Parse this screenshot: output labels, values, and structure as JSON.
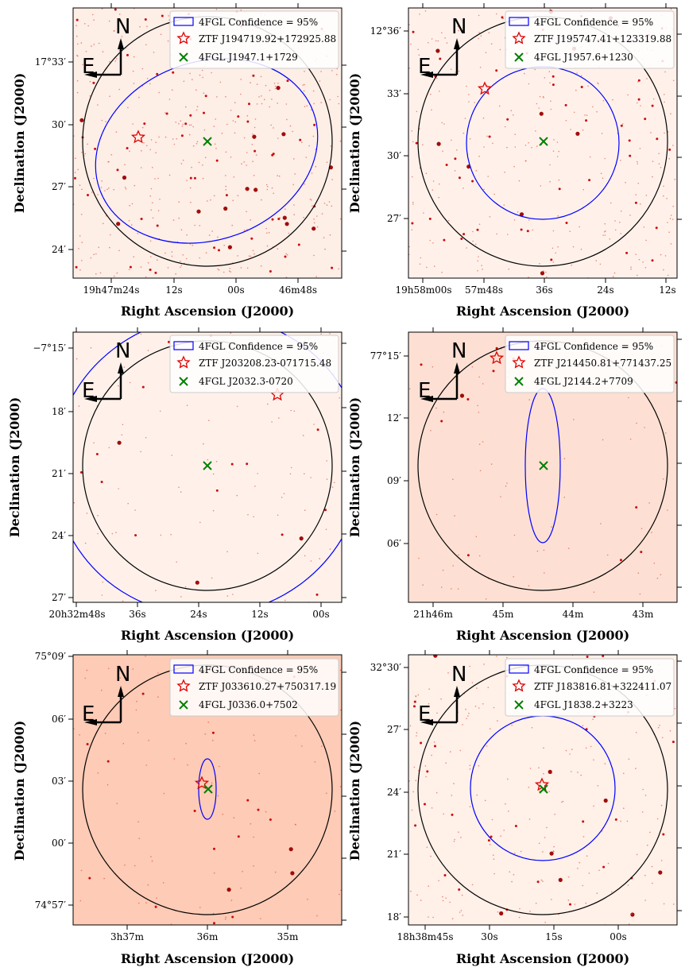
{
  "figure": {
    "panels": [
      {
        "id": "a",
        "bg": "#fdeee6",
        "legend": {
          "fgl_label": "4FGL Confidence = 95%",
          "ztf_label": "ZTF J194719.92+172925.88",
          "source_label": "4FGL J1947.1+1729"
        },
        "compass": {
          "north": "N",
          "east": "E"
        },
        "xticks": [
          "19h47m24s",
          "12s",
          "00s",
          "46m48s"
        ],
        "yticks": [
          "17°33′",
          "30′",
          "27′",
          "24′"
        ],
        "xlabel": "Right Ascension (J2000)",
        "ylabel": "Declination (J2000)"
      },
      {
        "id": "b",
        "bg": "#fff1ea",
        "legend": {
          "fgl_label": "4FGL Confidence = 95%",
          "ztf_label": "ZTF J195747.41+123319.88",
          "source_label": "4FGL J1957.6+1230"
        },
        "compass": {
          "north": "N",
          "east": "E"
        },
        "xticks": [
          "19h58m00s",
          "57m48s",
          "36s",
          "24s",
          "12s"
        ],
        "yticks": [
          "12°36′",
          "33′",
          "30′",
          "27′"
        ],
        "xlabel": "Right Ascension (J2000)",
        "ylabel": "Declination (J2000)"
      },
      {
        "id": "c",
        "bg": "#fff1ea",
        "legend": {
          "fgl_label": "4FGL Confidence = 95%",
          "ztf_label": "ZTF J203208.23-071715.48",
          "source_label": "4FGL J2032.3-0720"
        },
        "compass": {
          "north": "N",
          "east": "E"
        },
        "xticks": [
          "20h32m48s",
          "36s",
          "24s",
          "12s",
          "00s"
        ],
        "yticks": [
          "−7°15′",
          "18′",
          "21′",
          "24′",
          "27′"
        ],
        "xlabel": "Right Ascension (J2000)",
        "ylabel": "Declination (J2000)"
      },
      {
        "id": "d",
        "bg": "#fde0d3",
        "legend": {
          "fgl_label": "4FGL Confidence = 95%",
          "ztf_label": "ZTF J214450.81+771437.25",
          "source_label": "4FGL J2144.2+7709"
        },
        "compass": {
          "north": "N",
          "east": "E"
        },
        "xticks": [
          "21h46m",
          "45m",
          "44m",
          "43m"
        ],
        "yticks": [
          "77°15′",
          "12′",
          "09′",
          "06′"
        ],
        "xlabel": "Right Ascension (J2000)",
        "ylabel": "Declination (J2000)"
      },
      {
        "id": "e",
        "bg": "#fdcbb6",
        "legend": {
          "fgl_label": "4FGL Confidence = 95%",
          "ztf_label": "ZTF J033610.27+750317.19",
          "source_label": "4FGL J0336.0+7502"
        },
        "compass": {
          "north": "N",
          "east": "E"
        },
        "xticks": [
          "3h37m",
          "36m",
          "35m"
        ],
        "yticks": [
          "75°09′",
          "06′",
          "03′",
          "00′",
          "74°57′"
        ],
        "xlabel": "Right Ascension (J2000)",
        "ylabel": "Declination (J2000)"
      },
      {
        "id": "f",
        "bg": "#fff0e8",
        "legend": {
          "fgl_label": "4FGL Confidence = 95%",
          "ztf_label": "ZTF J183816.81+322411.07",
          "source_label": "4FGL J1838.2+3223"
        },
        "compass": {
          "north": "N",
          "east": "E"
        },
        "xticks": [
          "18h38m45s",
          "30s",
          "15s",
          "00s"
        ],
        "yticks": [
          "32°30′",
          "27′",
          "24′",
          "21′",
          "18′"
        ],
        "xlabel": "Right Ascension (J2000)",
        "ylabel": "Declination (J2000)"
      }
    ]
  }
}
